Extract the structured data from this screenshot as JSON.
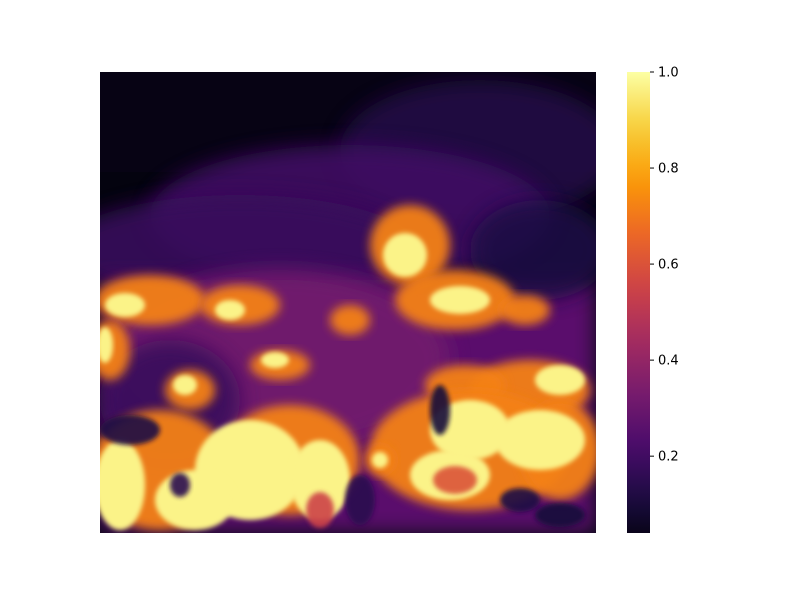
{
  "chart_data": {
    "type": "heatmap",
    "title": "",
    "xlabel": "",
    "ylabel": "",
    "axes_visible": false,
    "colormap": "inferno",
    "colormap_stops": [
      "#000004",
      "#1b0c41",
      "#4a0c6b",
      "#781c6d",
      "#a52c60",
      "#cf4446",
      "#ed6925",
      "#fb9b06",
      "#f7d13d",
      "#fcffa4"
    ],
    "colorbar": {
      "range": [
        0.04,
        1.0
      ],
      "ticks": [
        0.2,
        0.4,
        0.6,
        0.8,
        1.0
      ],
      "tick_labels": [
        "0.2",
        "0.4",
        "0.6",
        "0.8",
        "1.0"
      ]
    },
    "image_description_values": {
      "background_level": 0.05,
      "smoke_level": 0.3,
      "fire_level": 0.95
    }
  }
}
